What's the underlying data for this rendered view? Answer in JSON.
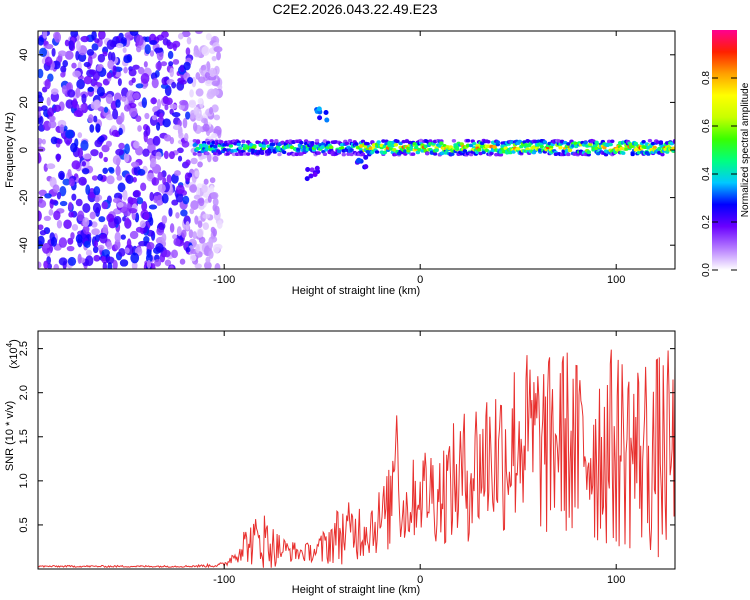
{
  "chart_data": [
    {
      "type": "heatmap",
      "title": "C2E2.2026.043.22.49.E23",
      "xlabel": "Height of straight line (km)",
      "ylabel": "Frequency (Hz)",
      "xlim": [
        -195,
        130
      ],
      "ylim": [
        -50,
        50
      ],
      "xticks": [
        -100,
        0,
        100
      ],
      "xtick_labels": [
        "-100",
        "0",
        "100"
      ],
      "yticks": [
        -40,
        -20,
        0,
        20,
        40
      ],
      "ytick_labels": [
        "-40",
        "-20",
        "0",
        "20",
        "40"
      ],
      "noise_region": {
        "x_range": [
          -195,
          -102
        ],
        "y_range": [
          -50,
          50
        ],
        "amplitude_range": [
          0.05,
          0.3
        ]
      },
      "signal_band": {
        "frequency_center": 1,
        "half_width_hz": 3,
        "segments": [
          {
            "x_range": [
              -115,
              -30
            ],
            "amplitude_range": [
              0.3,
              0.6
            ]
          },
          {
            "x_range": [
              -30,
              130
            ],
            "amplitude_range": [
              0.4,
              0.95
            ]
          }
        ]
      },
      "features": [
        {
          "x": -50,
          "y": 15,
          "amplitude": 0.3
        },
        {
          "x": -55,
          "y": -10,
          "amplitude": 0.2
        },
        {
          "x": -30,
          "y": -5,
          "amplitude": 0.25
        }
      ],
      "colorbar": {
        "label": "Normalized spectral amplitude",
        "range": [
          0,
          1
        ],
        "ticks": [
          0.0,
          0.2,
          0.4,
          0.6,
          0.8
        ],
        "tick_labels": [
          "0.0",
          "0.2",
          "0.4",
          "0.6",
          "0.8"
        ],
        "colormap": [
          "#ffffff",
          "#b57bff",
          "#6a00ff",
          "#0000ff",
          "#00c8ff",
          "#00ff80",
          "#39ff00",
          "#c8ff00",
          "#ffff00",
          "#ffa000",
          "#ff2000",
          "#ff0090"
        ]
      }
    },
    {
      "type": "line",
      "title": "",
      "xlabel": "Height of straight line (km)",
      "ylabel": "SNR (10 * v/v)",
      "scale_label": "(x10",
      "scale_exponent": "4",
      "xlim": [
        -195,
        130
      ],
      "ylim": [
        0,
        2.7
      ],
      "xticks": [
        -100,
        0,
        100
      ],
      "xtick_labels": [
        "-100",
        "0",
        "100"
      ],
      "yticks": [
        0.5,
        1.0,
        1.5,
        2.0,
        2.5
      ],
      "ytick_labels": [
        "0.5",
        "1.0",
        "1.5",
        "2.0",
        "2.5"
      ],
      "color": "#e8302e",
      "series": [
        {
          "name": "SNR",
          "x": [
            -195,
            -180,
            -160,
            -140,
            -120,
            -105,
            -100,
            -95,
            -90,
            -85,
            -80,
            -75,
            -70,
            -65,
            -60,
            -55,
            -50,
            -45,
            -40,
            -35,
            -30,
            -25,
            -20,
            -15,
            -12,
            -10,
            -5,
            0,
            5,
            10,
            15,
            20,
            25,
            30,
            35,
            40,
            45,
            50,
            55,
            60,
            65,
            70,
            75,
            80,
            85,
            90,
            95,
            100,
            105,
            110,
            115,
            120,
            125,
            130
          ],
          "y": [
            0.03,
            0.03,
            0.03,
            0.03,
            0.03,
            0.04,
            0.05,
            0.15,
            0.28,
            0.3,
            0.34,
            0.25,
            0.22,
            0.2,
            0.18,
            0.2,
            0.22,
            0.35,
            0.4,
            0.42,
            0.45,
            0.5,
            0.55,
            0.7,
            1.7,
            0.6,
            0.75,
            0.9,
            0.9,
            0.85,
            0.95,
            1.0,
            1.1,
            1.2,
            1.3,
            1.3,
            1.35,
            1.5,
            1.5,
            1.45,
            1.35,
            1.5,
            1.45,
            1.3,
            1.4,
            1.35,
            1.4,
            1.35,
            1.4,
            1.3,
            1.35,
            1.25,
            1.3,
            1.3
          ],
          "spread": [
            0.01,
            0.01,
            0.01,
            0.01,
            0.01,
            0.02,
            0.03,
            0.08,
            0.2,
            0.28,
            0.35,
            0.25,
            0.15,
            0.12,
            0.1,
            0.12,
            0.2,
            0.3,
            0.35,
            0.35,
            0.35,
            0.35,
            0.4,
            0.5,
            0.3,
            0.4,
            0.45,
            0.5,
            0.55,
            0.6,
            0.65,
            0.75,
            0.8,
            0.85,
            0.9,
            0.95,
            0.95,
            1.0,
            1.0,
            1.05,
            1.05,
            1.05,
            1.1,
            1.1,
            1.1,
            1.15,
            1.15,
            1.15,
            1.2,
            1.15,
            1.15,
            1.2,
            1.2,
            1.2
          ]
        }
      ]
    }
  ]
}
